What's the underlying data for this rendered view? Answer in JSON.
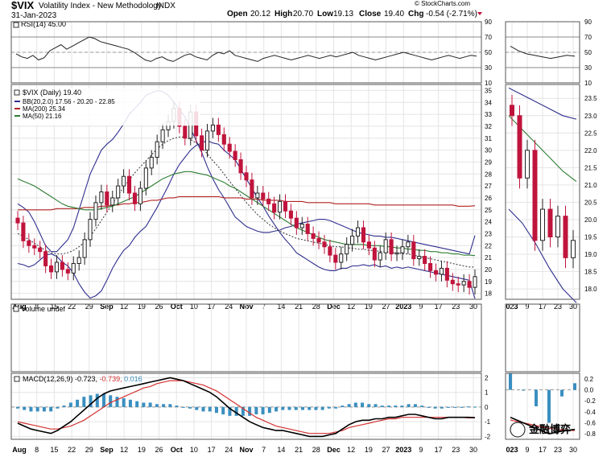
{
  "header": {
    "symbol": "$VIX",
    "name": "Volatility Index - New Methodology",
    "exchange": "INDX",
    "date": "31-Jan-2023",
    "watermark": "© StockCharts.com",
    "ohlc": {
      "open_label": "Open",
      "open": "20.12",
      "high_label": "High",
      "high": "20.70",
      "low_label": "Low",
      "low": "19.13",
      "close_label": "Close",
      "close": "19.40",
      "chg_label": "Chg",
      "chg": "-0.54 (-2.71%)"
    }
  },
  "colors": {
    "up": "#222222",
    "down": "#c0143c",
    "bb": "#2f2f8f",
    "ma200": "#b22222",
    "ma50": "#2e7d32",
    "macd": "#000000",
    "signal": "#d43030",
    "hist": "#3a8fbf",
    "rsi": "#222222",
    "chg": "#c0143c"
  },
  "chart_data": [
    {
      "type": "line",
      "title": "RSI(14) 45.00",
      "ylim": [
        10,
        90
      ],
      "yticks": [
        90,
        70,
        50,
        30,
        10
      ],
      "ylim_right_inset": [
        10,
        90
      ],
      "yticks_inset": [
        90,
        70,
        50,
        30,
        10
      ],
      "series": [
        {
          "values": [
            48,
            44,
            42,
            46,
            40,
            43,
            52,
            56,
            60,
            54,
            58,
            62,
            66,
            70,
            68,
            64,
            62,
            60,
            58,
            56,
            54,
            50,
            45,
            40,
            38,
            42,
            44,
            40,
            38,
            42,
            46,
            48,
            44,
            42,
            40,
            46,
            50,
            48,
            52,
            46,
            44,
            42,
            40,
            38,
            42,
            44,
            46,
            44,
            42,
            40,
            42,
            44,
            46,
            44,
            42,
            44,
            46,
            44,
            46,
            48,
            50,
            46,
            44,
            42,
            40,
            42,
            44,
            46,
            48,
            50,
            48,
            46,
            44,
            42,
            40,
            42,
            44,
            46,
            44,
            42,
            44,
            46,
            45
          ]
        }
      ],
      "inset_values": [
        58,
        52,
        48,
        46,
        44,
        42,
        44,
        46,
        45
      ]
    },
    {
      "type": "candlestick",
      "title": "$VIX (Daily) 19.40",
      "legend": [
        "BB(20,2.0) 17.56 - 20.20 - 22.85",
        "MA(200) 25.34",
        "MA(50) 21.16"
      ],
      "ylim": [
        17.5,
        35.5
      ],
      "yticks": [
        35,
        34,
        33,
        32,
        31,
        30,
        29,
        28,
        27,
        26,
        25,
        24,
        23,
        22,
        21,
        20,
        19,
        18
      ],
      "inset_ylim": [
        17.7,
        23.9
      ],
      "inset_yticks": [
        23.5,
        23.0,
        22.5,
        22.0,
        21.5,
        21.0,
        20.5,
        20.0,
        19.5,
        19.0,
        18.5,
        18.0
      ],
      "x_tick_labels": [
        "Aug",
        "8",
        "15",
        "22",
        "29",
        "Sep",
        "12",
        "19",
        "26",
        "Oct",
        "10",
        "17",
        "24",
        "Nov",
        "7",
        "14",
        "21",
        "28",
        "Dec",
        "12",
        "19",
        "27",
        "2023",
        "9",
        "17",
        "23",
        "30"
      ],
      "inset_x_tick_labels": [
        "023",
        "9",
        "17",
        "23",
        "30"
      ],
      "close": [
        23.9,
        22.4,
        22.0,
        21.8,
        21.5,
        20.3,
        19.8,
        20.6,
        20.0,
        19.7,
        20.5,
        21.0,
        22.5,
        24.2,
        25.6,
        26.5,
        25.4,
        26.0,
        27.0,
        27.8,
        26.4,
        25.5,
        26.8,
        28.5,
        29.4,
        30.7,
        31.7,
        32.4,
        33.5,
        32.0,
        31.0,
        33.2,
        31.2,
        30.0,
        31.6,
        32.1,
        31.3,
        30.5,
        29.9,
        29.2,
        28.1,
        27.5,
        26.0,
        26.4,
        25.9,
        25.5,
        24.8,
        25.7,
        24.9,
        24.3,
        23.5,
        23.8,
        23.0,
        22.6,
        22.3,
        21.9,
        21.2,
        20.6,
        21.3,
        22.1,
        22.8,
        23.5,
        22.3,
        21.8,
        20.8,
        21.4,
        22.5,
        21.3,
        21.4,
        21.9,
        22.3,
        20.9,
        21.1,
        20.5,
        19.9,
        19.6,
        20.1,
        19.1,
        18.8,
        18.7,
        19.0,
        18.5,
        19.4
      ],
      "bb_upper": [
        25.5,
        25.2,
        24.8,
        24.0,
        23.0,
        22.0,
        21.5,
        21.5,
        22.0,
        22.5,
        23.5,
        25.0,
        26.5,
        28.0,
        29.0,
        30.0,
        30.5,
        30.9,
        31.5,
        32.2,
        33.0,
        33.5,
        34.0,
        34.6,
        34.8,
        35.0,
        34.9,
        34.6,
        34.0,
        33.4,
        32.8,
        31.8,
        30.8,
        29.8,
        28.6,
        27.6,
        26.7,
        26.0,
        25.2,
        24.4,
        24.0,
        23.6,
        23.4,
        23.2,
        23.1,
        23.1,
        23.2,
        23.3,
        23.5,
        23.6,
        23.8,
        23.9,
        24.0,
        24.1,
        24.2,
        24.2,
        24.1,
        23.9,
        23.7,
        23.5,
        23.3,
        23.1,
        23.0,
        22.9,
        22.8,
        22.8,
        22.7,
        22.7,
        22.6,
        22.5,
        22.4,
        22.3,
        22.2,
        22.1,
        22.0,
        21.9,
        21.8,
        21.7,
        21.6,
        21.5,
        21.4,
        21.3,
        22.85
      ],
      "bb_middle": [
        23.0,
        22.8,
        22.5,
        22.2,
        21.9,
        21.6,
        21.4,
        21.3,
        21.3,
        21.4,
        21.6,
        21.9,
        22.3,
        22.8,
        23.4,
        24.1,
        24.8,
        25.5,
        26.2,
        26.9,
        27.5,
        28.1,
        28.6,
        29.1,
        29.6,
        30.1,
        30.5,
        30.8,
        31.0,
        31.1,
        31.1,
        30.9,
        30.6,
        30.2,
        29.7,
        29.1,
        28.6,
        28.0,
        27.4,
        26.8,
        26.2,
        25.6,
        25.1,
        24.6,
        24.2,
        23.8,
        23.5,
        23.2,
        23.0,
        22.8,
        22.6,
        22.5,
        22.4,
        22.3,
        22.2,
        22.1,
        22.0,
        21.9,
        21.9,
        21.8,
        21.8,
        21.7,
        21.7,
        21.6,
        21.6,
        21.5,
        21.5,
        21.4,
        21.4,
        21.3,
        21.3,
        21.2,
        21.1,
        21.0,
        20.9,
        20.8,
        20.7,
        20.6,
        20.5,
        20.4,
        20.3,
        20.2,
        20.2
      ],
      "bb_lower": [
        20.5,
        20.4,
        20.2,
        20.4,
        20.8,
        21.2,
        21.3,
        21.1,
        20.6,
        20.3,
        19.7,
        18.8,
        18.1,
        17.6,
        17.8,
        18.2,
        19.1,
        20.1,
        20.9,
        21.6,
        22.0,
        22.7,
        23.2,
        23.6,
        24.4,
        25.2,
        26.1,
        27.0,
        28.0,
        28.8,
        29.4,
        30.0,
        30.4,
        30.6,
        30.8,
        30.6,
        30.5,
        30.0,
        29.6,
        29.2,
        28.4,
        27.6,
        26.8,
        26.0,
        25.3,
        24.5,
        23.8,
        23.1,
        22.5,
        22.0,
        21.4,
        21.1,
        20.8,
        20.5,
        20.2,
        20.0,
        19.9,
        19.9,
        20.1,
        20.1,
        20.3,
        20.3,
        20.4,
        20.3,
        20.4,
        20.2,
        20.3,
        20.1,
        20.2,
        20.1,
        20.2,
        20.1,
        20.0,
        19.9,
        19.8,
        19.7,
        19.6,
        19.5,
        19.4,
        19.3,
        19.2,
        19.1,
        17.56
      ],
      "ma50": [
        27.6,
        27.4,
        27.2,
        27.0,
        26.7,
        26.4,
        26.1,
        25.8,
        25.5,
        25.3,
        25.2,
        25.1,
        25.0,
        25.0,
        25.0,
        25.1,
        25.2,
        25.3,
        25.5,
        25.7,
        25.9,
        26.1,
        26.4,
        26.7,
        27.0,
        27.3,
        27.6,
        27.8,
        28.0,
        28.1,
        28.2,
        28.2,
        28.1,
        28.0,
        27.9,
        27.7,
        27.5,
        27.3,
        27.0,
        26.8,
        26.5,
        26.2,
        25.9,
        25.6,
        25.3,
        25.0,
        24.7,
        24.4,
        24.1,
        23.8,
        23.5,
        23.3,
        23.1,
        22.9,
        22.7,
        22.5,
        22.4,
        22.3,
        22.2,
        22.1,
        22.1,
        22.1,
        22.1,
        22.0,
        22.0,
        22.0,
        21.9,
        21.9,
        21.8,
        21.8,
        21.7,
        21.7,
        21.6,
        21.6,
        21.5,
        21.5,
        21.4,
        21.4,
        21.3,
        21.3,
        21.2,
        21.2,
        21.16
      ],
      "ma200": [
        25.0,
        25.0,
        25.0,
        25.0,
        25.0,
        25.0,
        25.0,
        25.1,
        25.1,
        25.1,
        25.1,
        25.1,
        25.2,
        25.2,
        25.2,
        25.3,
        25.3,
        25.4,
        25.4,
        25.5,
        25.5,
        25.6,
        25.6,
        25.7,
        25.8,
        25.8,
        25.9,
        26.0,
        26.0,
        26.1,
        26.1,
        26.1,
        26.1,
        26.1,
        26.1,
        26.1,
        26.1,
        26.0,
        26.0,
        26.0,
        26.0,
        25.9,
        25.9,
        25.9,
        25.8,
        25.8,
        25.8,
        25.8,
        25.7,
        25.7,
        25.7,
        25.7,
        25.6,
        25.6,
        25.6,
        25.6,
        25.6,
        25.5,
        25.5,
        25.5,
        25.5,
        25.5,
        25.5,
        25.5,
        25.4,
        25.4,
        25.4,
        25.4,
        25.4,
        25.4,
        25.4,
        25.4,
        25.4,
        25.4,
        25.4,
        25.4,
        25.4,
        25.4,
        25.4,
        25.3,
        25.3,
        25.3,
        25.34
      ],
      "inset_close": [
        23.0,
        21.2,
        22.0,
        19.4,
        20.3,
        19.5,
        20.1,
        18.9,
        19.4
      ],
      "inset_bb_upper": [
        23.8,
        23.6,
        23.4,
        23.2,
        23.0,
        22.9
      ],
      "inset_bb_lower": [
        20.3,
        19.9,
        19.3,
        18.6,
        18.0,
        17.6
      ],
      "inset_ma50": [
        23.0,
        22.6,
        22.2,
        21.8,
        21.4,
        21.1
      ]
    },
    {
      "type": "bar",
      "title": "Volume undef",
      "values": []
    },
    {
      "type": "line",
      "title": "MACD(12,26,9)",
      "legend_values": {
        "macd": "-0.723",
        "signal": "-0.739",
        "histogram": "0.016"
      },
      "ylim": [
        -2.2,
        2.3
      ],
      "yticks": [
        2,
        1,
        0,
        -1,
        -2
      ],
      "inset_yticks": [
        0.2,
        0.0,
        -0.2,
        -0.4,
        -0.6,
        -0.8
      ],
      "macd": [
        -1.1,
        -1.3,
        -1.5,
        -1.6,
        -1.7,
        -1.8,
        -1.6,
        -1.3,
        -1.0,
        -0.6,
        -0.2,
        0.2,
        0.6,
        0.9,
        1.1,
        1.2,
        1.3,
        1.4,
        1.5,
        1.6,
        1.7,
        1.8,
        1.9,
        2.0,
        1.9,
        1.8,
        1.6,
        1.4,
        1.2,
        1.0,
        0.7,
        0.3,
        -0.1,
        -0.4,
        -0.7,
        -1.0,
        -1.2,
        -1.4,
        -1.5,
        -1.6,
        -1.6,
        -1.7,
        -1.8,
        -1.9,
        -2.0,
        -2.0,
        -2.0,
        -1.9,
        -1.8,
        -1.5,
        -1.2,
        -1.0,
        -0.9,
        -0.9,
        -0.8,
        -0.8,
        -0.7,
        -0.7,
        -0.6,
        -0.5,
        -0.5,
        -0.6,
        -0.7,
        -0.8,
        -0.8,
        -0.7,
        -0.7,
        -0.7,
        -0.7,
        -0.72
      ],
      "signal": [
        -1.0,
        -1.1,
        -1.2,
        -1.3,
        -1.4,
        -1.5,
        -1.5,
        -1.4,
        -1.3,
        -1.1,
        -0.9,
        -0.6,
        -0.3,
        0.0,
        0.3,
        0.5,
        0.7,
        0.9,
        1.1,
        1.3,
        1.4,
        1.6,
        1.7,
        1.8,
        1.8,
        1.8,
        1.7,
        1.6,
        1.5,
        1.3,
        1.1,
        0.8,
        0.5,
        0.2,
        -0.1,
        -0.4,
        -0.7,
        -0.9,
        -1.1,
        -1.3,
        -1.4,
        -1.5,
        -1.6,
        -1.7,
        -1.8,
        -1.8,
        -1.8,
        -1.8,
        -1.7,
        -1.6,
        -1.4,
        -1.3,
        -1.2,
        -1.1,
        -1.0,
        -0.9,
        -0.8,
        -0.8,
        -0.7,
        -0.7,
        -0.7,
        -0.7,
        -0.7,
        -0.7,
        -0.7,
        -0.7,
        -0.7,
        -0.7,
        -0.74,
        -0.74
      ],
      "inset_macd": [
        -0.5,
        -0.6,
        -0.7,
        -0.8,
        -0.75,
        -0.72
      ],
      "inset_signal": [
        -0.55,
        -0.6,
        -0.65,
        -0.7,
        -0.73,
        -0.74
      ],
      "x_tick_labels": [
        "Aug",
        "8",
        "15",
        "22",
        "29",
        "Sep",
        "12",
        "19",
        "26",
        "Oct",
        "10",
        "17",
        "24",
        "Nov",
        "7",
        "14",
        "21",
        "28",
        "Dec",
        "12",
        "19",
        "27",
        "2023",
        "9",
        "17",
        "23",
        "30"
      ],
      "inset_x_tick_labels": [
        "023",
        "9",
        "17",
        "23",
        "30"
      ]
    }
  ],
  "corner_badge": {
    "text": "金融博弈",
    "icon": "wechat-icon"
  }
}
